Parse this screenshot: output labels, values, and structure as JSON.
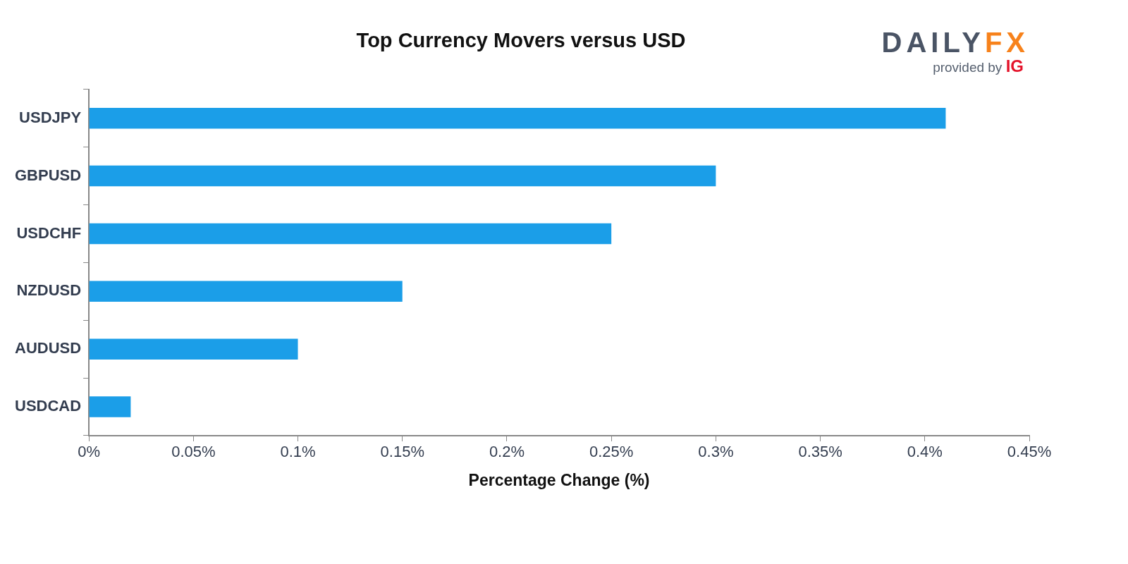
{
  "chart_data": {
    "type": "bar",
    "orientation": "horizontal",
    "title": "Top Currency Movers versus USD",
    "x_label": "Percentage Change (%)",
    "annotations": [
      "DAILYFX",
      "provided by IG"
    ],
    "categories": [
      "USDJPY",
      "GBPUSD",
      "USDCHF",
      "NZDUSD",
      "AUDUSD",
      "USDCAD"
    ],
    "values": [
      0.41,
      0.3,
      0.25,
      0.15,
      0.1,
      0.02
    ],
    "color": "#1b9ee8",
    "xlim": [
      0,
      0.45
    ],
    "xticks": [
      {
        "value": 0,
        "label": "0%"
      },
      {
        "value": 0.05,
        "label": "0.05%"
      },
      {
        "value": 0.1,
        "label": "0.1%"
      },
      {
        "value": 0.15,
        "label": "0.15%"
      },
      {
        "value": 0.2,
        "label": "0.2%"
      },
      {
        "value": 0.25,
        "label": "0.25%"
      },
      {
        "value": 0.3,
        "label": "0.3%"
      },
      {
        "value": 0.35,
        "label": "0.35%"
      },
      {
        "value": 0.4,
        "label": "0.4%"
      },
      {
        "value": 0.45,
        "label": "0.45%"
      }
    ],
    "grid": false
  }
}
